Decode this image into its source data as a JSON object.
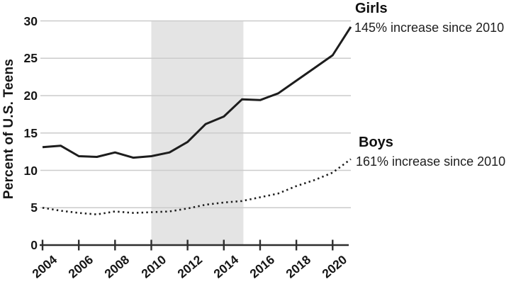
{
  "chart_data": {
    "type": "line",
    "title": "",
    "xlabel": "",
    "ylabel": "Percent of U.S. Teens",
    "x": [
      2004,
      2005,
      2006,
      2007,
      2008,
      2009,
      2010,
      2011,
      2012,
      2013,
      2014,
      2015,
      2016,
      2017,
      2018,
      2019,
      2020,
      2021
    ],
    "series": [
      {
        "name": "Girls",
        "style": "solid",
        "annotation": "145% increase since 2010",
        "values": [
          13.1,
          13.3,
          11.9,
          11.8,
          12.4,
          11.7,
          11.9,
          12.4,
          13.8,
          16.2,
          17.2,
          19.5,
          19.4,
          20.3,
          22.0,
          23.7,
          25.4,
          29.2
        ]
      },
      {
        "name": "Boys",
        "style": "dotted",
        "annotation": "161% increase since 2010",
        "values": [
          5.0,
          4.6,
          4.3,
          4.1,
          4.5,
          4.3,
          4.4,
          4.5,
          4.9,
          5.4,
          5.7,
          5.9,
          6.4,
          6.9,
          7.9,
          8.7,
          9.7,
          11.5
        ]
      }
    ],
    "xticks": [
      2004,
      2006,
      2008,
      2010,
      2012,
      2014,
      2016,
      2018,
      2020
    ],
    "yticks": [
      0,
      5,
      10,
      15,
      20,
      25,
      30
    ],
    "xlim": [
      2004,
      2021
    ],
    "ylim": [
      0,
      30
    ],
    "grid": "horizontal",
    "legend_position": "right-annotations",
    "shaded_region": {
      "x_start": 2010,
      "x_end": 2015,
      "color": "#e4e4e4"
    },
    "colors": {
      "line": "#1d1d1d",
      "grid": "#cbcbcb",
      "axis": "#2e2e2e",
      "text": "#161616"
    }
  }
}
